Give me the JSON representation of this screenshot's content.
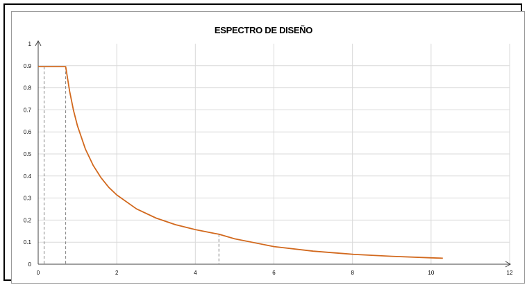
{
  "chart_data": {
    "type": "line",
    "title": "ESPECTRO DE DISEÑO",
    "xlabel": "",
    "ylabel": "",
    "xlim": [
      0,
      12
    ],
    "ylim": [
      0,
      1
    ],
    "x_ticks": [
      0,
      2,
      4,
      6,
      8,
      10,
      12
    ],
    "y_ticks": [
      0,
      0.1,
      0.2,
      0.3,
      0.4,
      0.5,
      0.6,
      0.7,
      0.8,
      0.9,
      1
    ],
    "grid": true,
    "legend": "none",
    "series": [
      {
        "color": "#d2691e",
        "x": [
          0,
          0.7,
          0.8,
          0.9,
          1.0,
          1.2,
          1.4,
          1.6,
          1.8,
          2.0,
          2.5,
          3.0,
          3.5,
          4.0,
          4.5,
          4.6,
          5.0,
          6.0,
          7.0,
          8.0,
          9.0,
          10.0,
          10.3
        ],
        "y": [
          0.896,
          0.896,
          0.784,
          0.697,
          0.627,
          0.523,
          0.448,
          0.392,
          0.348,
          0.314,
          0.251,
          0.209,
          0.179,
          0.157,
          0.139,
          0.136,
          0.115,
          0.08,
          0.059,
          0.045,
          0.036,
          0.029,
          0.027
        ]
      }
    ],
    "reference_lines": [
      {
        "x": 0.15,
        "y": 0.896
      },
      {
        "x": 0.7,
        "y": 0.896
      },
      {
        "x": 4.6,
        "y": 0.136
      }
    ]
  }
}
